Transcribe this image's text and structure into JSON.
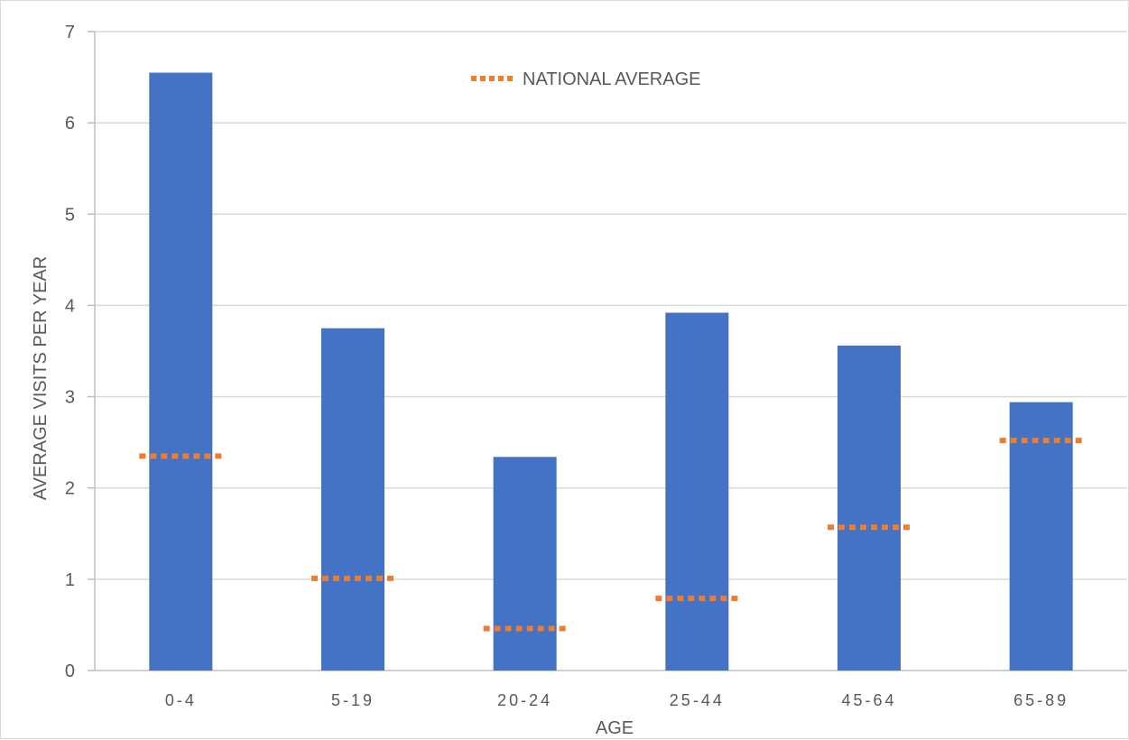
{
  "chart_data": {
    "type": "bar",
    "title": "",
    "xlabel": "AGE",
    "ylabel": "AVERAGE VISITS PER YEAR",
    "categories": [
      "0-4",
      "5-19",
      "20-24",
      "25-44",
      "45-64",
      "65-89"
    ],
    "ylim": [
      0,
      7
    ],
    "yticks": [
      0,
      1,
      2,
      3,
      4,
      5,
      6,
      7
    ],
    "grid": true,
    "legend_placement": "top-center",
    "series": [
      {
        "values": [
          6.55,
          3.75,
          2.34,
          3.92,
          3.56,
          2.94
        ],
        "mark": "bar",
        "color": "#4472c4"
      },
      {
        "name": "NATIONAL AVERAGE",
        "values": [
          2.35,
          1.01,
          0.46,
          0.79,
          1.57,
          2.52
        ],
        "mark": "dotted-marker",
        "color": "#ed7d31"
      }
    ]
  }
}
